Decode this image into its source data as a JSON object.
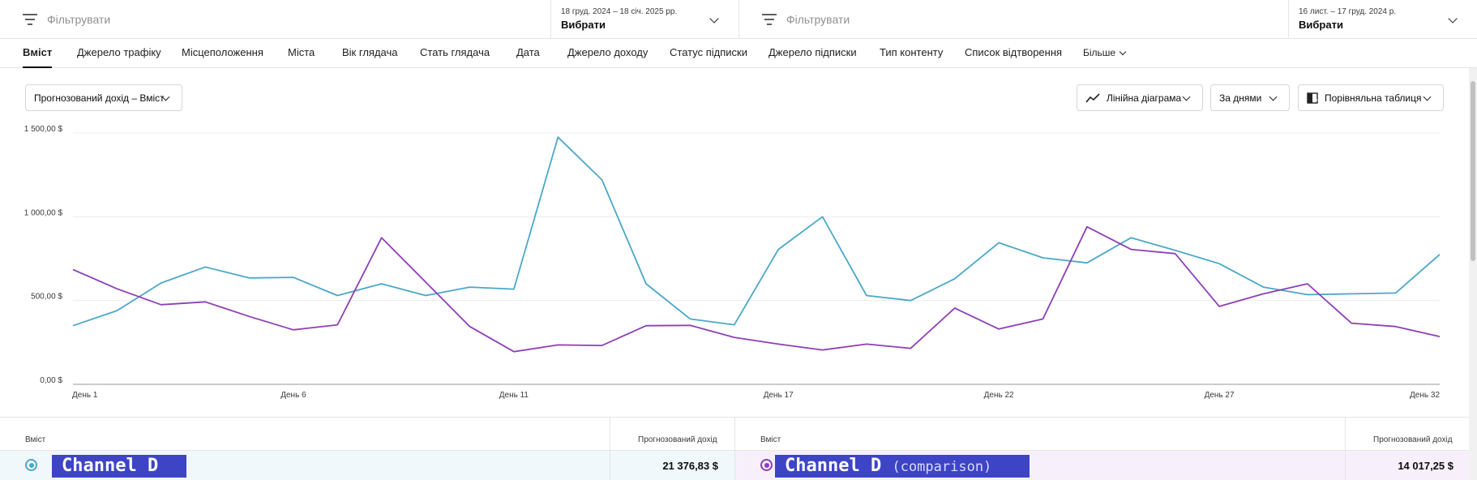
{
  "filters": {
    "left": {
      "placeholder": "Фільтрувати"
    },
    "left_date": {
      "range": "18 груд. 2024 – 18 січ. 2025 рр.",
      "value": "Вибрати"
    },
    "right": {
      "placeholder": "Фільтрувати"
    },
    "right_date": {
      "range": "16 лист. – 17 груд. 2024 р.",
      "value": "Вибрати"
    }
  },
  "tabs": [
    {
      "label": "Вміст",
      "active": true
    },
    {
      "label": "Джерело трафіку"
    },
    {
      "label": "Місцеположення"
    },
    {
      "label": "Міста"
    },
    {
      "label": "Вік глядача"
    },
    {
      "label": "Стать глядача"
    },
    {
      "label": "Дата"
    },
    {
      "label": "Джерело доходу"
    },
    {
      "label": "Статус підписки"
    },
    {
      "label": "Джерело підписки"
    },
    {
      "label": "Тип контенту"
    },
    {
      "label": "Список відтворення"
    },
    {
      "label": "Більше"
    }
  ],
  "controls": {
    "metric": "Прогнозований дохід – Вміст",
    "chart_type": "Лінійна діаграма",
    "interval": "За днями",
    "comparison": "Порівняльна таблиця"
  },
  "chart_data": {
    "type": "line",
    "x": [
      "День 1",
      "День 2",
      "День 3",
      "День 4",
      "День 5",
      "День 6",
      "День 7",
      "День 8",
      "День 9",
      "День 10",
      "День 11",
      "День 12",
      "День 13",
      "День 14",
      "День 15",
      "День 16",
      "День 17",
      "День 18",
      "День 19",
      "День 20",
      "День 21",
      "День 22",
      "День 23",
      "День 24",
      "День 25",
      "День 26",
      "День 27",
      "День 28",
      "День 29",
      "День 30",
      "День 31",
      "День 32"
    ],
    "x_tick_labels": [
      "День 1",
      "День 6",
      "День 11",
      "День 17",
      "День 22",
      "День 27",
      "День 32"
    ],
    "y_tick_labels": [
      "0,00 $",
      "500,00 $",
      "1 000,00 $",
      "1 500,00 $"
    ],
    "ylim": [
      0,
      1500
    ],
    "grid": true,
    "series": [
      {
        "color": "#4aa8c8",
        "values": [
          350,
          440,
          605,
          700,
          635,
          638,
          530,
          600,
          530,
          580,
          568,
          1475,
          1220,
          600,
          390,
          355,
          805,
          1000,
          530,
          500,
          630,
          845,
          755,
          725,
          875,
          800,
          720,
          580,
          535,
          540,
          545,
          775
        ]
      },
      {
        "color": "#8e3fb5",
        "values": [
          685,
          570,
          475,
          492,
          405,
          325,
          355,
          875,
          610,
          345,
          195,
          235,
          232,
          350,
          352,
          280,
          240,
          205,
          240,
          215,
          455,
          330,
          390,
          940,
          805,
          780,
          465,
          540,
          600,
          365,
          345,
          285
        ]
      }
    ]
  },
  "table": {
    "left": {
      "col_content": "Вміст",
      "col_revenue": "Прогнозований дохід",
      "channel": "Channel D",
      "revenue": "21 376,83 $",
      "color": "#4aa8c8"
    },
    "right": {
      "col_content": "Вміст",
      "col_revenue": "Прогнозований дохід",
      "channel": "Channel D",
      "channel_suffix": "(comparison)",
      "revenue": "14 017,25 $",
      "color": "#8e3fb5"
    }
  }
}
